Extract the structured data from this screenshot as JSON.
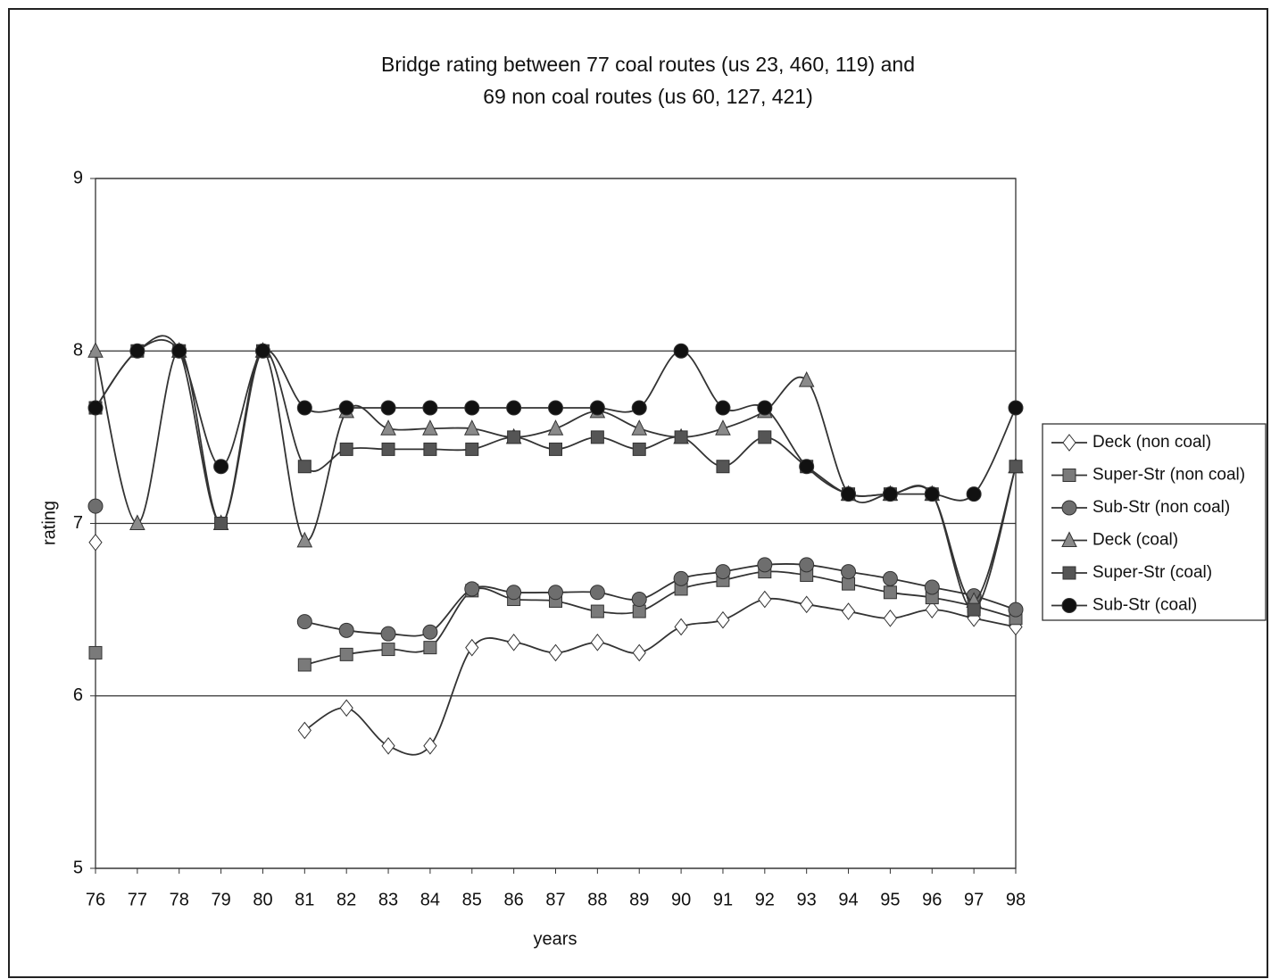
{
  "chart_data": {
    "type": "line",
    "title": [
      "Bridge rating between 77 coal routes (us 23, 460, 119) and",
      "69 non coal routes (us 60, 127, 421)"
    ],
    "xlabel": "years",
    "ylabel": "rating",
    "categories": [
      "76",
      "77",
      "78",
      "79",
      "80",
      "81",
      "82",
      "83",
      "84",
      "85",
      "86",
      "87",
      "88",
      "89",
      "90",
      "91",
      "92",
      "93",
      "94",
      "95",
      "96",
      "97",
      "98"
    ],
    "ylim": [
      5,
      9
    ],
    "yticks": [
      5,
      6,
      7,
      8,
      9
    ],
    "grid": true,
    "legend": "right",
    "series": [
      {
        "name": "Deck (non coal)",
        "color": "#ffffff",
        "marker": "diamond",
        "values": [
          6.89,
          null,
          null,
          null,
          null,
          5.8,
          5.93,
          5.71,
          5.71,
          6.28,
          6.31,
          6.25,
          6.31,
          6.25,
          6.4,
          6.44,
          6.56,
          6.53,
          6.49,
          6.45,
          6.5,
          6.45,
          6.4
        ]
      },
      {
        "name": "Super-Str (non coal)",
        "color": "#7a7a7a",
        "marker": "square",
        "values": [
          6.25,
          null,
          null,
          null,
          null,
          6.18,
          6.24,
          6.27,
          6.28,
          6.61,
          6.56,
          6.55,
          6.49,
          6.49,
          6.62,
          6.67,
          6.72,
          6.7,
          6.65,
          6.6,
          6.57,
          6.52,
          6.45
        ]
      },
      {
        "name": "Sub-Str (non coal)",
        "color": "#6e6e6e",
        "marker": "circle",
        "values": [
          7.1,
          null,
          null,
          null,
          null,
          6.43,
          6.38,
          6.36,
          6.37,
          6.62,
          6.6,
          6.6,
          6.6,
          6.56,
          6.68,
          6.72,
          6.76,
          6.76,
          6.72,
          6.68,
          6.63,
          6.58,
          6.5
        ]
      },
      {
        "name": "Deck (coal)",
        "color": "#8a8a8a",
        "marker": "triangle",
        "values": [
          8,
          7,
          8,
          7,
          8,
          6.9,
          7.65,
          7.55,
          7.55,
          7.55,
          7.5,
          7.55,
          7.65,
          7.55,
          7.5,
          7.55,
          7.65,
          7.83,
          7.17,
          7.17,
          7.17,
          6.55,
          7.33
        ]
      },
      {
        "name": "Super-Str (coal)",
        "color": "#555555",
        "marker": "square",
        "values": [
          7.67,
          8,
          8,
          7,
          8,
          7.33,
          7.43,
          7.43,
          7.43,
          7.43,
          7.5,
          7.43,
          7.5,
          7.43,
          7.5,
          7.33,
          7.5,
          7.33,
          7.17,
          7.17,
          7.17,
          6.5,
          7.33
        ]
      },
      {
        "name": "Sub-Str (coal)",
        "color": "#111111",
        "marker": "circle",
        "values": [
          7.67,
          8,
          8,
          7.33,
          8,
          7.67,
          7.67,
          7.67,
          7.67,
          7.67,
          7.67,
          7.67,
          7.67,
          7.67,
          8,
          7.67,
          7.67,
          7.33,
          7.17,
          7.17,
          7.17,
          7.17,
          7.67
        ]
      }
    ]
  }
}
